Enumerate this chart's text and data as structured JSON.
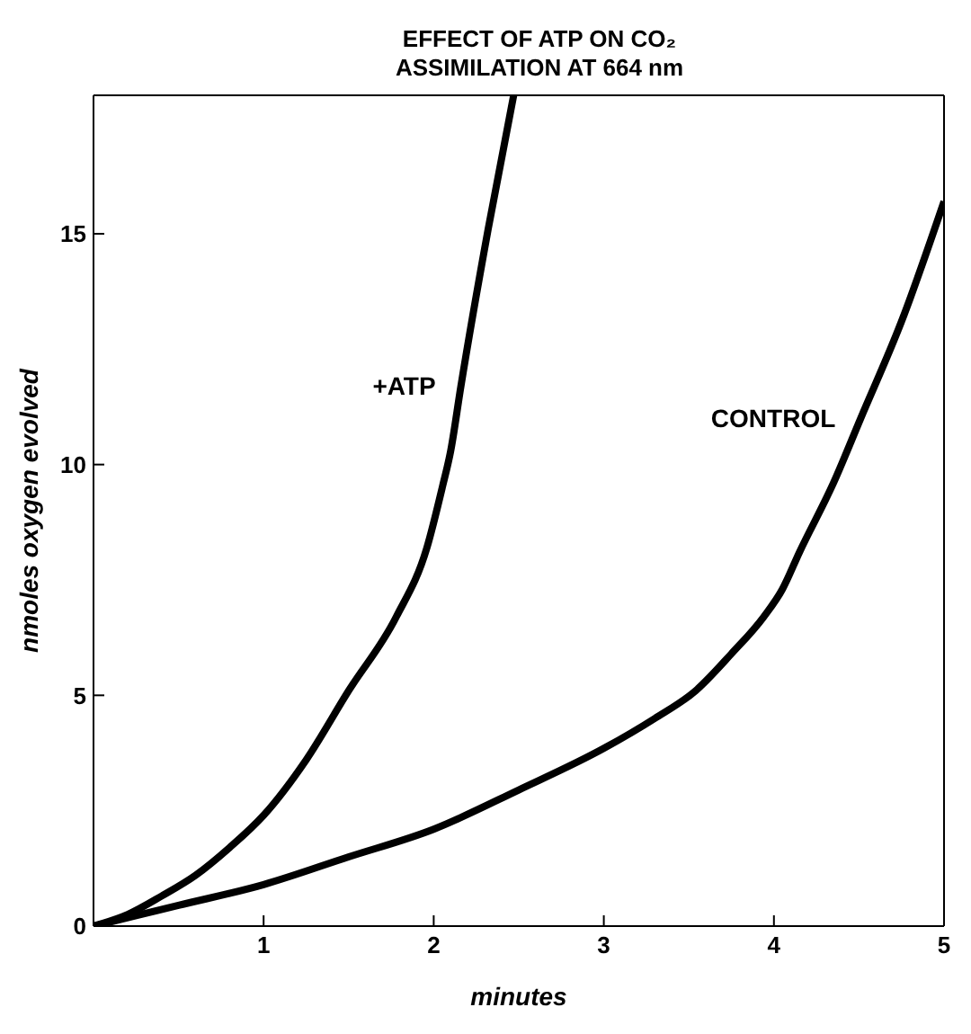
{
  "chart_data": {
    "type": "line",
    "title": "EFFECT OF ATP ON CO₂\nASSIMILATION AT 664 nm",
    "xlabel": "minutes",
    "ylabel": "nmoles oxygen evolved",
    "xlim": [
      0,
      5
    ],
    "ylim": [
      0,
      18
    ],
    "xticks": [
      {
        "value": 0,
        "label": null
      },
      1,
      2,
      3,
      4,
      5
    ],
    "yticks": [
      0,
      5,
      10,
      15
    ],
    "grid": false,
    "legend": false,
    "marker": "none",
    "line_style": "solid",
    "series": [
      {
        "name": "+ATP",
        "color": "#000000",
        "x": [
          0,
          0.2,
          0.4,
          0.6,
          0.8,
          1.0,
          1.25,
          1.5,
          1.78,
          1.96,
          2.05,
          2.1,
          2.16,
          2.32,
          2.47
        ],
        "values": [
          0,
          0.25,
          0.65,
          1.1,
          1.7,
          2.4,
          3.6,
          5.1,
          6.7,
          8.2,
          9.5,
          10.3,
          11.7,
          15.1,
          18
        ]
      },
      {
        "name": "CONTROL",
        "color": "#000000",
        "x": [
          0,
          0.5,
          1.0,
          1.5,
          2.0,
          2.5,
          3.0,
          3.3,
          3.54,
          3.75,
          3.94,
          4.05,
          4.15,
          4.35,
          4.51,
          4.75,
          5.0
        ],
        "values": [
          0,
          0.45,
          0.9,
          1.5,
          2.1,
          2.95,
          3.85,
          4.5,
          5.1,
          5.9,
          6.7,
          7.3,
          8.1,
          9.6,
          11.0,
          13.1,
          15.7
        ]
      }
    ]
  }
}
